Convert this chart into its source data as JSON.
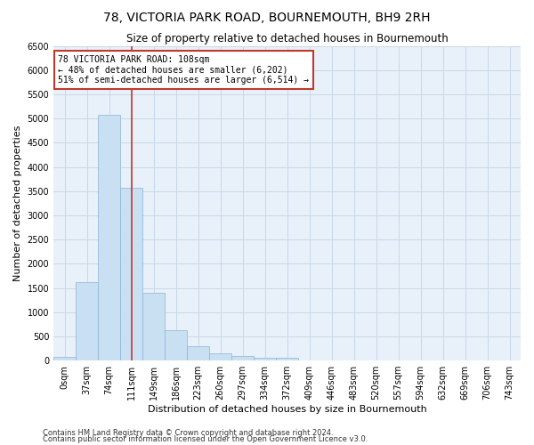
{
  "title": "78, VICTORIA PARK ROAD, BOURNEMOUTH, BH9 2RH",
  "subtitle": "Size of property relative to detached houses in Bournemouth",
  "xlabel": "Distribution of detached houses by size in Bournemouth",
  "ylabel": "Number of detached properties",
  "bar_color": "#c9dff2",
  "bar_edge_color": "#8ab4d8",
  "bar_values": [
    75,
    1625,
    5075,
    3575,
    1400,
    625,
    300,
    150,
    100,
    60,
    60,
    0,
    0,
    0,
    0,
    0,
    0,
    0,
    0,
    0,
    0
  ],
  "bar_labels": [
    "0sqm",
    "37sqm",
    "74sqm",
    "111sqm",
    "149sqm",
    "186sqm",
    "223sqm",
    "260sqm",
    "297sqm",
    "334sqm",
    "372sqm",
    "409sqm",
    "446sqm",
    "483sqm",
    "520sqm",
    "557sqm",
    "594sqm",
    "632sqm",
    "669sqm",
    "706sqm",
    "743sqm"
  ],
  "bar_width": 1.0,
  "vline_x": 3,
  "vline_color": "#c0392b",
  "annotation_text": "78 VICTORIA PARK ROAD: 108sqm\n← 48% of detached houses are smaller (6,202)\n51% of semi-detached houses are larger (6,514) →",
  "annotation_box_color": "#c0392b",
  "ylim": [
    0,
    6500
  ],
  "yticks": [
    0,
    500,
    1000,
    1500,
    2000,
    2500,
    3000,
    3500,
    4000,
    4500,
    5000,
    5500,
    6000,
    6500
  ],
  "grid_color": "#c8d8e8",
  "background_color": "#e8f1fa",
  "footer1": "Contains HM Land Registry data © Crown copyright and database right 2024.",
  "footer2": "Contains public sector information licensed under the Open Government Licence v3.0.",
  "title_fontsize": 10,
  "subtitle_fontsize": 8.5,
  "xlabel_fontsize": 8,
  "ylabel_fontsize": 8,
  "tick_fontsize": 7,
  "annotation_fontsize": 7,
  "footer_fontsize": 6
}
